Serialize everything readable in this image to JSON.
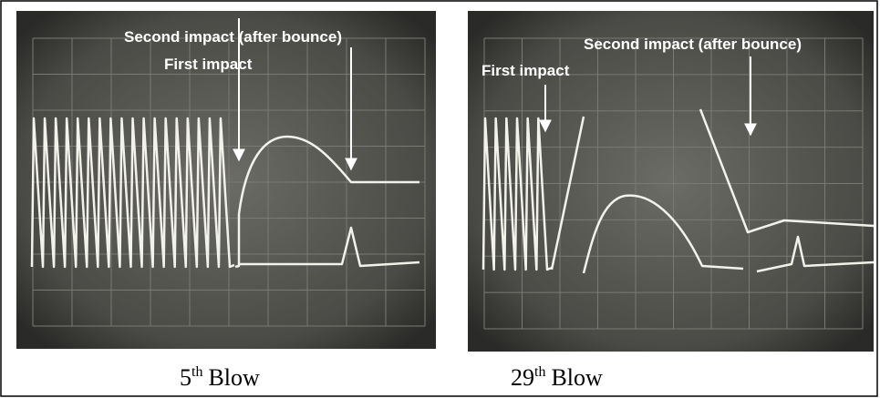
{
  "panels": [
    {
      "annotations": {
        "second": "Second impact (after bounce)",
        "first": "First impact"
      },
      "caption": {
        "number": "5",
        "suffix": "th",
        "word": "Blow"
      }
    },
    {
      "annotations": {
        "second": "Second impact (after bounce)",
        "first": "First impact"
      },
      "caption": {
        "number": "29",
        "suffix": "th",
        "word": "Blow"
      }
    }
  ]
}
